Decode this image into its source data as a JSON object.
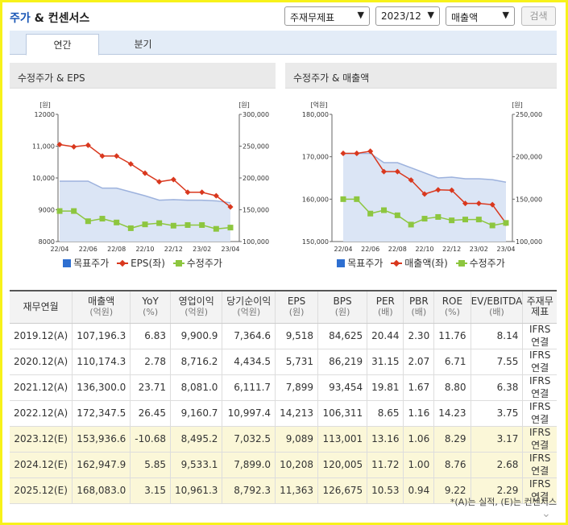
{
  "header": {
    "title_blue": "주가",
    "title_rest": " & 컨센서스",
    "select_type": "주재무제표",
    "select_period": "2023/12",
    "select_metric": "매출액",
    "search_label": "검색"
  },
  "tabs": [
    {
      "label": "연간"
    },
    {
      "label": "분기"
    }
  ],
  "charts": {
    "left": {
      "title": "수정주가 & EPS",
      "left_unit": "[원]",
      "right_unit": "[원]",
      "left_ticks": [
        "12000",
        "11,000",
        "10,000",
        "9000",
        "8000"
      ],
      "right_ticks": [
        "300,000",
        "250,000",
        "200,000",
        "150,000",
        "100,000"
      ],
      "x_ticks": [
        "22/04",
        "22/06",
        "22/08",
        "22/10",
        "22/12",
        "23/02",
        "23/04"
      ],
      "legend": [
        "목표주가",
        "EPS(좌)",
        "수정주가"
      ]
    },
    "right": {
      "title": "수정주가 & 매출액",
      "left_unit": "[억원]",
      "right_unit": "[원]",
      "left_ticks": [
        "180,000",
        "170,000",
        "160,000",
        "150,000"
      ],
      "right_ticks": [
        "250,000",
        "200,000",
        "150,000",
        "100,000"
      ],
      "x_ticks": [
        "22/04",
        "22/06",
        "22/08",
        "22/10",
        "22/12",
        "23/02",
        "23/04"
      ],
      "legend": [
        "목표주가",
        "매출액(좌)",
        "수정주가"
      ]
    }
  },
  "chart_data": [
    {
      "type": "line",
      "title": "수정주가 & EPS",
      "xlabel": "",
      "ylabel": "[원]",
      "ylabel_right": "[원]",
      "ylim": [
        8000,
        12000
      ],
      "ylim_right": [
        100000,
        300000
      ],
      "x": [
        "22/04",
        "",
        "22/06",
        "",
        "22/08",
        "",
        "22/10",
        "",
        "22/12",
        "",
        "23/02",
        "",
        "23/04"
      ],
      "series": [
        {
          "name": "목표주가",
          "axis": "right",
          "style": "area",
          "color": "#9db2dd",
          "values": [
            195000,
            195000,
            195000,
            184000,
            184000,
            178000,
            172000,
            165000,
            166000,
            165000,
            165000,
            164000,
            161000
          ]
        },
        {
          "name": "EPS(좌)",
          "axis": "left",
          "style": "line-diamond",
          "color": "#d9381e",
          "values": [
            11050,
            10980,
            11030,
            10690,
            10690,
            10440,
            10150,
            9880,
            9950,
            9550,
            9550,
            9440,
            9090
          ]
        },
        {
          "name": "수정주가",
          "axis": "right",
          "style": "line-square",
          "color": "#8dc63f",
          "values": [
            148000,
            148000,
            132000,
            136000,
            130000,
            121000,
            127000,
            129000,
            125000,
            126000,
            126000,
            120000,
            122000
          ]
        }
      ]
    },
    {
      "type": "line",
      "title": "수정주가 & 매출액",
      "xlabel": "",
      "ylabel": "[억원]",
      "ylabel_right": "[원]",
      "ylim": [
        150000,
        180000
      ],
      "ylim_right": [
        100000,
        250000
      ],
      "x": [
        "22/04",
        "",
        "22/06",
        "",
        "22/08",
        "",
        "22/10",
        "",
        "22/12",
        "",
        "23/02",
        "",
        "23/04"
      ],
      "series": [
        {
          "name": "목표주가",
          "axis": "right",
          "style": "area",
          "color": "#9db2dd",
          "values": [
            204000,
            204000,
            204000,
            193000,
            193000,
            187000,
            181000,
            175000,
            176000,
            174000,
            174000,
            173000,
            170000
          ]
        },
        {
          "name": "매출액(좌)",
          "axis": "left",
          "style": "line-diamond",
          "color": "#d9381e",
          "values": [
            170800,
            170800,
            171300,
            166500,
            166500,
            164500,
            161200,
            162200,
            162100,
            159000,
            159000,
            158700,
            154300
          ]
        },
        {
          "name": "수정주가",
          "axis": "right",
          "style": "line-square",
          "color": "#8dc63f",
          "values": [
            150000,
            150000,
            133000,
            137000,
            131000,
            120000,
            127000,
            129000,
            125000,
            126000,
            126000,
            119000,
            122000
          ]
        }
      ]
    },
    {
      "type": "table",
      "columns": [
        {
          "label": "재무연월",
          "unit": ""
        },
        {
          "label": "매출액",
          "unit": "(억원)"
        },
        {
          "label": "YoY",
          "unit": "(%)"
        },
        {
          "label": "영업이익",
          "unit": "(억원)"
        },
        {
          "label": "당기순이익",
          "unit": "(억원)"
        },
        {
          "label": "EPS",
          "unit": "(원)"
        },
        {
          "label": "BPS",
          "unit": "(원)"
        },
        {
          "label": "PER",
          "unit": "(배)"
        },
        {
          "label": "PBR",
          "unit": "(배)"
        },
        {
          "label": "ROE",
          "unit": "(%)"
        },
        {
          "label": "EV/EBITDA",
          "unit": "(배)"
        },
        {
          "label": "주재무제표",
          "unit": ""
        }
      ],
      "rows": [
        {
          "estimate": false,
          "cells": [
            "2019.12(A)",
            "107,196.3",
            "6.83",
            "9,900.9",
            "7,364.6",
            "9,518",
            "84,625",
            "20.44",
            "2.30",
            "11.76",
            "8.14",
            "IFRS연결"
          ]
        },
        {
          "estimate": false,
          "cells": [
            "2020.12(A)",
            "110,174.3",
            "2.78",
            "8,716.2",
            "4,434.5",
            "5,731",
            "86,219",
            "31.15",
            "2.07",
            "6.71",
            "7.55",
            "IFRS연결"
          ]
        },
        {
          "estimate": false,
          "cells": [
            "2021.12(A)",
            "136,300.0",
            "23.71",
            "8,081.0",
            "6,111.7",
            "7,899",
            "93,454",
            "19.81",
            "1.67",
            "8.80",
            "6.38",
            "IFRS연결"
          ]
        },
        {
          "estimate": false,
          "cells": [
            "2022.12(A)",
            "172,347.5",
            "26.45",
            "9,160.7",
            "10,997.4",
            "14,213",
            "106,311",
            "8.65",
            "1.16",
            "14.23",
            "3.75",
            "IFRS연결"
          ]
        },
        {
          "estimate": true,
          "cells": [
            "2023.12(E)",
            "153,936.6",
            "-10.68",
            "8,495.2",
            "7,032.5",
            "9,089",
            "113,001",
            "13.16",
            "1.06",
            "8.29",
            "3.17",
            "IFRS연결"
          ]
        },
        {
          "estimate": true,
          "cells": [
            "2024.12(E)",
            "162,947.9",
            "5.85",
            "9,533.1",
            "7,899.0",
            "10,208",
            "120,005",
            "11.72",
            "1.00",
            "8.76",
            "2.68",
            "IFRS연결"
          ]
        },
        {
          "estimate": true,
          "cells": [
            "2025.12(E)",
            "168,083.0",
            "3.15",
            "10,961.3",
            "8,792.3",
            "11,363",
            "126,675",
            "10.53",
            "0.94",
            "9.22",
            "2.29",
            "IFRS연결"
          ]
        }
      ]
    }
  ],
  "footnote": "*(A)는 실적, (E)는 컨센서스",
  "colors": {
    "accent_blue": "#1a57b6",
    "estimate_row": "#fbf7d8",
    "target_fill": "#dbe5f5",
    "legend_target": "#2e6fd1"
  }
}
